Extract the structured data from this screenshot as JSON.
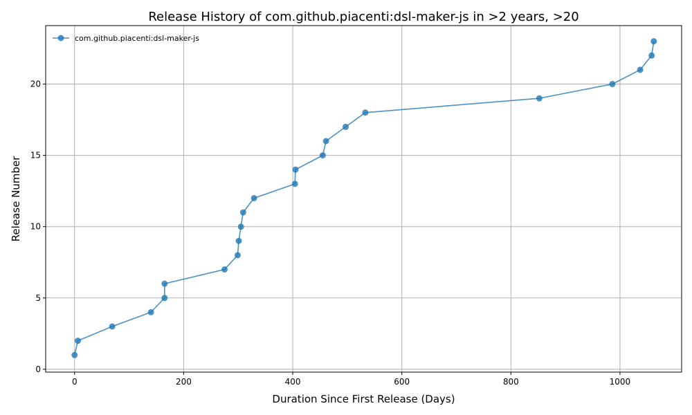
{
  "chart_data": {
    "type": "line",
    "title": "Release History of com.github.piacenti:dsl-maker-js in >2 years, >20",
    "xlabel": "Duration Since First Release (Days)",
    "ylabel": "Release Number",
    "xlim": [
      -53,
      1113
    ],
    "ylim": [
      -0.2,
      24.1
    ],
    "xticks": [
      0,
      200,
      400,
      600,
      800,
      1000
    ],
    "yticks": [
      0,
      5,
      10,
      15,
      20
    ],
    "grid": true,
    "legend_position": "top-left",
    "series": [
      {
        "name": "com.github.piacenti:dsl-maker-js",
        "color": "#1f77b4",
        "x": [
          0,
          6,
          69,
          140,
          165,
          165,
          275,
          299,
          301,
          305,
          309,
          329,
          404,
          405,
          455,
          461,
          497,
          533,
          852,
          986,
          1037,
          1058,
          1062
        ],
        "y": [
          1,
          2,
          3,
          4,
          5,
          6,
          7,
          8,
          9,
          10,
          11,
          12,
          13,
          14,
          15,
          16,
          17,
          18,
          19,
          20,
          21,
          22,
          23
        ]
      }
    ]
  }
}
